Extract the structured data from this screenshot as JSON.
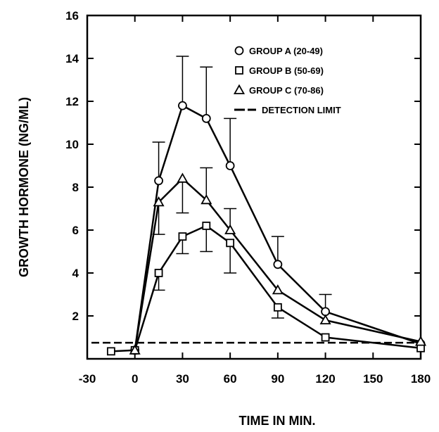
{
  "chart_data": {
    "type": "line",
    "title": "",
    "xlabel": "TIME IN MIN.",
    "ylabel": "GROWTH HORMONE (NG/ML)",
    "xlim": [
      -30,
      180
    ],
    "ylim": [
      0,
      16
    ],
    "xticks": [
      -30,
      0,
      30,
      60,
      90,
      120,
      150,
      180
    ],
    "yticks": [
      2,
      4,
      6,
      8,
      10,
      12,
      14,
      16
    ],
    "x": [
      -15,
      0,
      15,
      30,
      45,
      60,
      90,
      120,
      180
    ],
    "grid": false,
    "legend_position": "top-right",
    "series": [
      {
        "name": "GROUP A (20-49)",
        "marker": "circle",
        "values": [
          null,
          0.4,
          8.3,
          11.8,
          11.2,
          9.0,
          4.4,
          2.2,
          0.7
        ],
        "error_upper": [
          null,
          null,
          10.1,
          14.1,
          13.6,
          11.2,
          5.7,
          3.0,
          null
        ]
      },
      {
        "name": "GROUP B (50-69)",
        "marker": "square",
        "values": [
          0.35,
          0.4,
          4.0,
          5.7,
          6.2,
          5.4,
          2.4,
          1.0,
          0.5
        ],
        "error_lower": [
          null,
          null,
          3.2,
          4.9,
          5.0,
          4.0,
          1.9,
          null,
          null
        ]
      },
      {
        "name": "GROUP C (70-86)",
        "marker": "triangle",
        "values": [
          null,
          0.4,
          7.3,
          8.4,
          7.4,
          6.0,
          3.2,
          1.8,
          0.8
        ],
        "error_lower": [
          null,
          null,
          5.8,
          6.8,
          null,
          null,
          null,
          null,
          null
        ],
        "error_upper": [
          null,
          null,
          null,
          null,
          8.9,
          7.0,
          null,
          null,
          null
        ]
      }
    ],
    "reference_line": {
      "name": "DETECTION LIMIT",
      "value": 0.75,
      "style": "dashed"
    }
  }
}
